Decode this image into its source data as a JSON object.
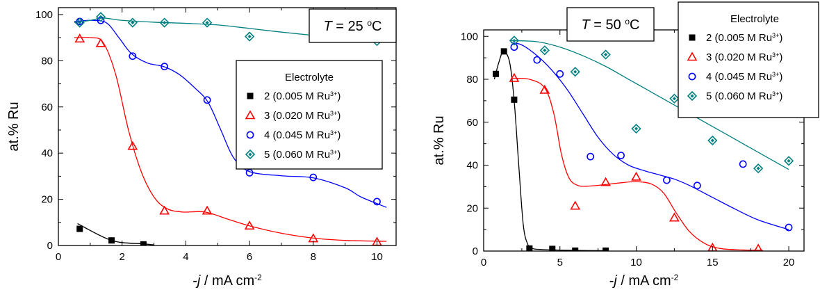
{
  "chart_data": [
    {
      "type": "scatter",
      "title": "",
      "annotation": {
        "var": "T",
        "text": " = 25 °C"
      },
      "xlabel": {
        "prefix": "-",
        "var": "j",
        "suffix": " / mA cm",
        "sup": "-2"
      },
      "ylabel": "at.% Ru",
      "xlim": [
        0,
        10.6
      ],
      "ylim": [
        0,
        103
      ],
      "xticks": [
        0,
        2,
        4,
        6,
        8,
        10
      ],
      "yticks": [
        0,
        20,
        40,
        60,
        80,
        100
      ],
      "grid": false,
      "legend": {
        "title": "Electrolyte",
        "position": "right"
      },
      "series": [
        {
          "name": "2 (0.005 M Ru",
          "sup": "3+",
          "close": ")",
          "marker": "square",
          "color": "#000000",
          "x": [
            0.67,
            1.67,
            2.67
          ],
          "y": [
            7.2,
            2.2,
            0.5
          ],
          "fit_x": [
            0.6,
            1.67,
            2.67,
            3.0
          ],
          "fit_y": [
            9.5,
            2.2,
            0.7,
            0.3
          ]
        },
        {
          "name": "3 (0.020 M Ru",
          "sup": "3+",
          "close": ")",
          "marker": "triangle",
          "color": "#ff0000",
          "x": [
            0.67,
            1.33,
            2.33,
            3.33,
            4.67,
            6.0,
            8.0,
            10.0
          ],
          "y": [
            89.5,
            87.5,
            43.0,
            15.0,
            15.0,
            8.5,
            3.0,
            1.5
          ],
          "fit_x": [
            0.5,
            1.0,
            1.4,
            1.8,
            2.2,
            2.6,
            3.0,
            3.4,
            3.9,
            4.6,
            5.3,
            6.0,
            7.0,
            8.0,
            9.0,
            10.3
          ],
          "fit_y": [
            90,
            90,
            88,
            74,
            50,
            32,
            21,
            16,
            14.5,
            14.5,
            11.5,
            8.5,
            5.3,
            3.2,
            2.2,
            1.8
          ]
        },
        {
          "name": "4 (0.045 M Ru",
          "sup": "3+",
          "close": ")",
          "marker": "circle",
          "color": "#0000ff",
          "x": [
            0.67,
            1.33,
            2.33,
            3.33,
            4.67,
            6.0,
            8.0,
            10.0
          ],
          "y": [
            97.0,
            97.5,
            82.0,
            77.5,
            63.0,
            31.5,
            29.5,
            19.0
          ],
          "fit_x": [
            0.5,
            1.0,
            1.5,
            1.9,
            2.3,
            2.8,
            3.3,
            3.8,
            4.3,
            4.7,
            5.1,
            5.5,
            6.0,
            7.0,
            8.0,
            9.0,
            9.5,
            10.3
          ],
          "fit_y": [
            97,
            97.5,
            96.5,
            90,
            83,
            79,
            77.5,
            74,
            68,
            62,
            50,
            38,
            32,
            30.2,
            29.3,
            25,
            21,
            16.5
          ]
        },
        {
          "name": "5 (0.060 M Ru",
          "sup": "3+",
          "close": ")",
          "marker": "diamond",
          "color": "#008080",
          "x": [
            0.67,
            1.33,
            2.33,
            3.33,
            4.67,
            6.0,
            8.0,
            10.0
          ],
          "y": [
            96.5,
            99.0,
            96.5,
            96.5,
            96.5,
            90.5,
            92.0,
            88.5
          ],
          "fit_x": [
            0.5,
            1.0,
            1.4,
            2.0,
            3.0,
            4.0,
            5.0,
            6.0,
            7.0,
            8.0,
            9.0,
            10.3
          ],
          "fit_y": [
            96.5,
            97.5,
            98.5,
            97.5,
            96.7,
            96.2,
            95.5,
            94.0,
            92.4,
            91.0,
            89.7,
            88.8
          ]
        }
      ]
    },
    {
      "type": "scatter",
      "title": "",
      "annotation": {
        "var": "T",
        "text": " = 50 °C"
      },
      "xlabel": {
        "prefix": "-",
        "var": "j",
        "suffix": " / mA cm",
        "sup": "-2"
      },
      "ylabel": "at.% Ru",
      "xlim": [
        0,
        21
      ],
      "ylim": [
        0,
        103
      ],
      "xticks": [
        0,
        5,
        10,
        15,
        20
      ],
      "yticks": [
        0,
        20,
        40,
        60,
        80,
        100
      ],
      "grid": false,
      "legend": {
        "title": "Electrolyte",
        "position": "top-right"
      },
      "series": [
        {
          "name": "2 (0.005 M Ru",
          "sup": "3+",
          "close": ")",
          "marker": "square",
          "color": "#000000",
          "x": [
            0.8,
            1.33,
            2.0,
            3.0,
            4.5,
            6.0,
            8.0
          ],
          "y": [
            82.5,
            93.0,
            70.5,
            1.2,
            1.0,
            0.2,
            0.2
          ],
          "fit_x": [
            0.7,
            1.0,
            1.3,
            1.7,
            2.0,
            2.3,
            2.6,
            2.9,
            3.2,
            3.6,
            4.5,
            6.0,
            8.0
          ],
          "fit_y": [
            80,
            88,
            93,
            88,
            70,
            40,
            12,
            3,
            1.2,
            0.8,
            0.5,
            0.3,
            0.2
          ]
        },
        {
          "name": "3 (0.020 M Ru",
          "sup": "3+",
          "close": ")",
          "marker": "triangle",
          "color": "#ff0000",
          "x": [
            2.0,
            4.0,
            6.0,
            8.0,
            10.0,
            12.5,
            15.0,
            18.0
          ],
          "y": [
            80.5,
            75.0,
            21.0,
            32.0,
            34.5,
            15.5,
            1.5,
            1.0
          ],
          "fit_x": [
            1.8,
            3.0,
            4.0,
            4.6,
            5.1,
            5.6,
            6.2,
            7.0,
            8.0,
            9.0,
            10.0,
            11.0,
            11.8,
            12.6,
            13.5,
            14.5,
            15.5,
            17.0,
            18.3
          ],
          "fit_y": [
            80.5,
            80,
            76,
            64,
            45,
            34,
            30.5,
            30.3,
            31,
            31.8,
            32.3,
            31.2,
            27,
            18,
            9,
            3.5,
            1.2,
            0.5,
            0.4
          ]
        },
        {
          "name": "4 (0.045 M Ru",
          "sup": "3+",
          "close": ")",
          "marker": "circle",
          "color": "#0000ff",
          "x": [
            2.0,
            3.5,
            5.0,
            7.0,
            9.0,
            12.0,
            14.0,
            17.0,
            20.0
          ],
          "y": [
            95.0,
            89.0,
            82.5,
            44.0,
            44.5,
            33.0,
            30.5,
            40.5,
            11.0
          ],
          "fit_x": [
            1.8,
            2.5,
            3.5,
            4.5,
            5.5,
            6.5,
            7.5,
            8.5,
            9.5,
            10.5,
            11.5,
            12.5,
            13.5,
            15.0,
            16.5,
            18.0,
            20.0
          ],
          "fit_y": [
            97,
            96,
            91,
            84,
            75,
            64,
            53,
            45,
            40,
            37.5,
            35.5,
            33.5,
            30.5,
            25,
            19.5,
            14.5,
            10
          ]
        },
        {
          "name": "5 (0.060 M Ru",
          "sup": "3+",
          "close": ")",
          "marker": "diamond",
          "color": "#008080",
          "x": [
            2.0,
            4.0,
            6.0,
            8.0,
            10.0,
            12.5,
            15.0,
            18.0,
            20.0
          ],
          "y": [
            98.0,
            93.5,
            83.5,
            91.5,
            57.0,
            71.0,
            51.5,
            38.5,
            42.0
          ],
          "fit_x": [
            1.8,
            3.5,
            5.0,
            6.5,
            8.0,
            9.5,
            11.0,
            12.5,
            14.0,
            15.5,
            17.0,
            18.5,
            20.0
          ],
          "fit_y": [
            98,
            97.5,
            95,
            91,
            86,
            80,
            74,
            68,
            62,
            56,
            50,
            44,
            38
          ]
        }
      ]
    }
  ]
}
